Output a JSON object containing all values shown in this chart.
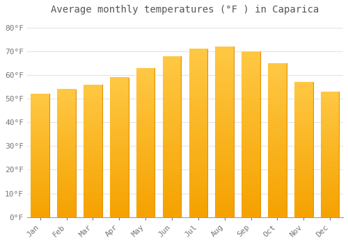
{
  "title": "Average monthly temperatures (°F ) in Caparica",
  "months": [
    "Jan",
    "Feb",
    "Mar",
    "Apr",
    "May",
    "Jun",
    "Jul",
    "Aug",
    "Sep",
    "Oct",
    "Nov",
    "Dec"
  ],
  "values": [
    52,
    54,
    56,
    59,
    63,
    68,
    71,
    72,
    70,
    65,
    57,
    53
  ],
  "bar_color_top": "#FFC844",
  "bar_color_bottom": "#F5A200",
  "background_color": "#FFFFFF",
  "grid_color": "#DDDDDD",
  "yticks": [
    0,
    10,
    20,
    30,
    40,
    50,
    60,
    70,
    80
  ],
  "ytick_labels": [
    "0°F",
    "10°F",
    "20°F",
    "30°F",
    "40°F",
    "50°F",
    "60°F",
    "70°F",
    "80°F"
  ],
  "ylim": [
    0,
    84
  ],
  "title_fontsize": 10,
  "tick_fontsize": 8,
  "font_color": "#777777",
  "title_color": "#555555"
}
